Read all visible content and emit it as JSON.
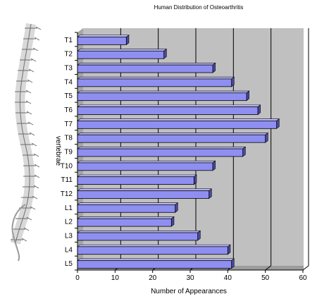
{
  "chart_data": {
    "type": "bar",
    "orientation": "horizontal",
    "title": "Human Distribution of Osteoarthritis",
    "xlabel": "Number of Appearances",
    "ylabel": "vertebrae",
    "categories": [
      "T1",
      "T2",
      "T3",
      "T4",
      "T5",
      "T6",
      "T7",
      "T8",
      "T9",
      "T10",
      "T11",
      "T12",
      "L1",
      "L2",
      "L3",
      "L4",
      "L5"
    ],
    "values": [
      13,
      23,
      36,
      41,
      45,
      48,
      53,
      50,
      44,
      36,
      31,
      35,
      26,
      25,
      32,
      40,
      41
    ],
    "xlim": [
      0,
      60
    ],
    "xticks": [
      0,
      10,
      20,
      30,
      40,
      50,
      60
    ],
    "grid": true,
    "legend": "none",
    "colors": {
      "bar_face": "#8f8ff2",
      "bar_top": "#c2c2ff",
      "bar_side": "#4a4aa6",
      "plot_bg": "#c0c0c0",
      "gridline": "#000000"
    }
  },
  "decoration": {
    "illustration": "spine-illustration"
  }
}
